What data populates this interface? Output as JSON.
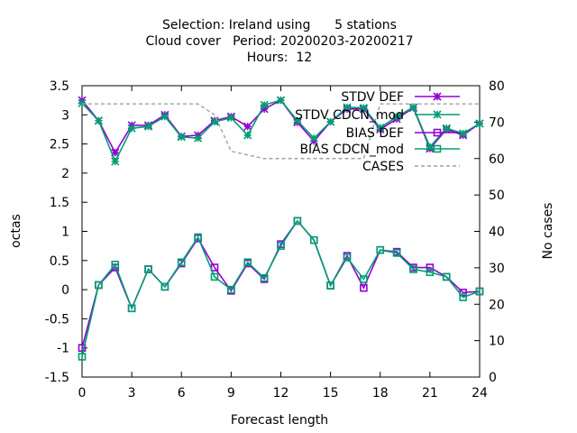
{
  "chart_data": {
    "type": "line",
    "title_lines": [
      "Selection: Ireland using      5 stations",
      "Cloud cover   Period: 20200203-20200217",
      "Hours:  12"
    ],
    "xlabel": "Forecast length",
    "ylabel": "octas",
    "y2label": "No cases",
    "xlim": [
      0,
      24
    ],
    "ylim": [
      -1.5,
      3.5
    ],
    "y2lim": [
      0,
      80
    ],
    "x_ticks": [
      0,
      3,
      6,
      9,
      12,
      15,
      18,
      21,
      24
    ],
    "y_ticks": [
      "-1.5",
      "-1",
      "-0.5",
      "0",
      "0.5",
      "1",
      "1.5",
      "2",
      "2.5",
      "3",
      "3.5"
    ],
    "y2_ticks": [
      "0",
      "10",
      "20",
      "30",
      "40",
      "50",
      "60",
      "70",
      "80"
    ],
    "grid": false,
    "legend_position": "top-right",
    "x": [
      0,
      1,
      2,
      3,
      4,
      5,
      6,
      7,
      8,
      9,
      10,
      11,
      12,
      13,
      14,
      15,
      16,
      17,
      18,
      19,
      20,
      21,
      22,
      23,
      24
    ],
    "series": [
      {
        "name": "STDV DEF",
        "axis": "y1",
        "color": "#9400d3",
        "marker": "star",
        "values": [
          3.25,
          2.9,
          2.35,
          2.82,
          2.82,
          3.0,
          2.63,
          2.65,
          2.9,
          2.97,
          2.8,
          3.1,
          3.25,
          2.87,
          2.55,
          2.88,
          3.1,
          3.1,
          2.75,
          2.93,
          3.12,
          2.42,
          2.75,
          2.65,
          2.85
        ]
      },
      {
        "name": "STDV CDCN_mod",
        "axis": "y1",
        "color": "#009e73",
        "marker": "star",
        "values": [
          3.2,
          2.9,
          2.2,
          2.77,
          2.8,
          2.97,
          2.62,
          2.6,
          2.88,
          2.95,
          2.65,
          3.17,
          3.25,
          2.9,
          2.6,
          2.88,
          3.13,
          3.12,
          2.78,
          2.97,
          3.13,
          2.45,
          2.77,
          2.68,
          2.85
        ]
      },
      {
        "name": "BIAS DEF",
        "axis": "y1",
        "color": "#9400d3",
        "marker": "square",
        "values": [
          -1.0,
          0.08,
          0.38,
          -0.32,
          0.35,
          0.05,
          0.45,
          0.88,
          0.38,
          -0.02,
          0.45,
          0.18,
          0.78,
          1.18,
          0.85,
          0.07,
          0.58,
          0.03,
          0.68,
          0.65,
          0.38,
          0.38,
          0.22,
          -0.05,
          -0.03
        ]
      },
      {
        "name": "BIAS CDCN_mod",
        "axis": "y1",
        "color": "#009e73",
        "marker": "square",
        "values": [
          -1.15,
          0.08,
          0.43,
          -0.32,
          0.35,
          0.05,
          0.47,
          0.9,
          0.22,
          0.0,
          0.47,
          0.2,
          0.75,
          1.18,
          0.85,
          0.07,
          0.55,
          0.18,
          0.68,
          0.63,
          0.35,
          0.3,
          0.22,
          -0.13,
          -0.03
        ]
      },
      {
        "name": "CASES",
        "axis": "y2",
        "color": "#a0a0a0",
        "marker": "none",
        "dashed": true,
        "values": [
          75,
          75,
          75,
          75,
          75,
          75,
          75,
          75,
          72,
          62,
          61,
          60,
          60,
          60,
          60,
          60,
          60,
          60,
          75,
          75,
          75,
          75,
          75,
          75,
          75
        ]
      }
    ]
  }
}
